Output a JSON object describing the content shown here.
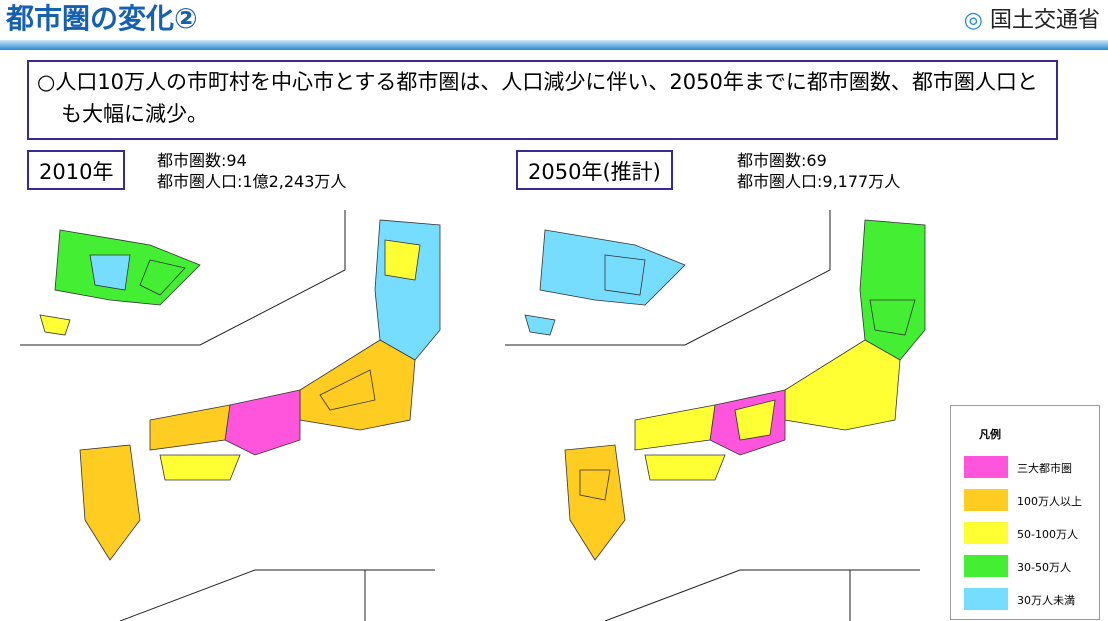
{
  "header": {
    "title": "都市圏の変化②",
    "logo": "国土交通省"
  },
  "summary": "○人口10万人の市町村を中心市とする都市圏は、人口減少に伴い、2050年までに都市圏数、都市圏人口とも大幅に減少。",
  "panels": [
    {
      "year": "2010年",
      "stats": [
        "都市圏数:94",
        "都市圏人口:1億2,243万人"
      ]
    },
    {
      "year": "2050年(推計)",
      "stats": [
        "都市圏数:69",
        "都市圏人口:9,177万人"
      ]
    }
  ],
  "legend": {
    "title": "凡例",
    "items": [
      {
        "label": "三大都市圏",
        "color": "#ff55dd"
      },
      {
        "label": "100万人以上",
        "color": "#ffcc22"
      },
      {
        "label": "50-100万人",
        "color": "#ffff33"
      },
      {
        "label": "30-50万人",
        "color": "#44ee33"
      },
      {
        "label": "30万人未満",
        "color": "#77ddff"
      }
    ]
  }
}
